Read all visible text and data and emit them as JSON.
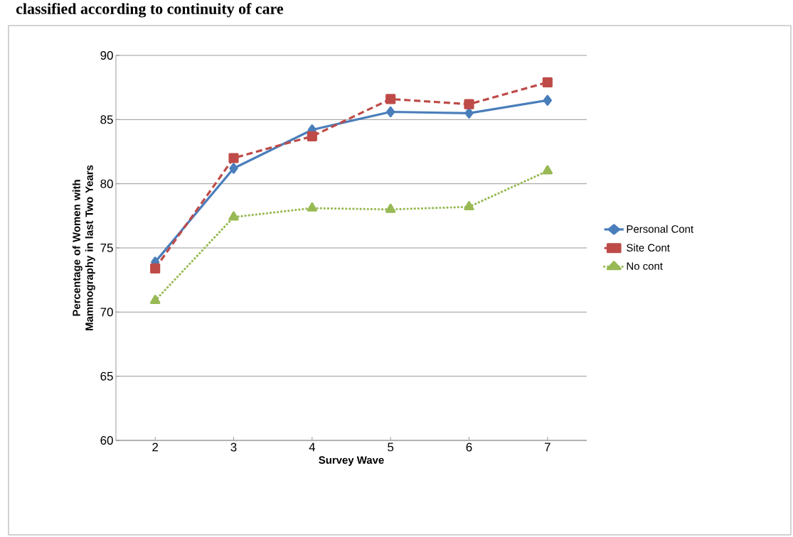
{
  "chart_data": {
    "type": "line",
    "title": "classified according to continuity of care",
    "xlabel": "Survey Wave",
    "ylabel": "Percentage of Women with Mammography in last Two Years",
    "categories": [
      "2",
      "3",
      "4",
      "5",
      "6",
      "7"
    ],
    "series": [
      {
        "name": "Personal Cont",
        "color": "#4a7ebb",
        "marker": "diamond",
        "line_style": "solid",
        "values": [
          73.9,
          81.2,
          84.2,
          85.6,
          85.5,
          86.5
        ]
      },
      {
        "name": "Site Cont",
        "color": "#be4b48",
        "marker": "square",
        "line_style": "dashed",
        "values": [
          73.4,
          82.0,
          83.7,
          86.6,
          86.2,
          87.9
        ]
      },
      {
        "name": "No cont",
        "color": "#98b954",
        "marker": "triangle",
        "line_style": "dotted",
        "values": [
          70.9,
          77.4,
          78.1,
          78.0,
          78.2,
          81.0
        ]
      }
    ],
    "ylim": [
      60,
      90
    ],
    "yticks": [
      60,
      65,
      70,
      75,
      80,
      85,
      90
    ],
    "grid": "y",
    "legend": "right"
  }
}
